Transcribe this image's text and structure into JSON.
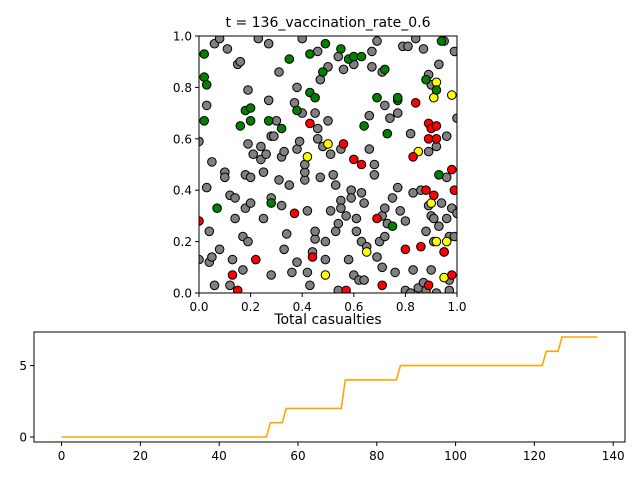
{
  "chart_data": [
    {
      "type": "scatter",
      "title": "t = 136_vaccination_rate_0.6",
      "xlabel": "",
      "ylabel": "",
      "xlim": [
        0,
        1
      ],
      "ylim": [
        0,
        1
      ],
      "xticks": [
        "0.0",
        "0.2",
        "0.4",
        "0.6",
        "0.8",
        "1.0"
      ],
      "yticks": [
        "0.0",
        "0.2",
        "0.4",
        "0.6",
        "0.8",
        "1.0"
      ],
      "grid": false,
      "colors": {
        "susceptible": "#808080",
        "vaccinated": "#008000",
        "infected": "#ff0000",
        "recovered": "#ffff00",
        "edge": "#000000"
      },
      "series": [
        {
          "name": "green",
          "color": "#008000",
          "points": [
            [
              0.02,
              0.93
            ],
            [
              0.02,
              0.84
            ],
            [
              0.03,
              0.81
            ],
            [
              0.02,
              0.67
            ],
            [
              0.07,
              0.33
            ],
            [
              0.16,
              0.65
            ],
            [
              0.18,
              0.71
            ],
            [
              0.2,
              0.67
            ],
            [
              0.2,
              0.72
            ],
            [
              0.27,
              0.67
            ],
            [
              0.28,
              0.35
            ],
            [
              0.32,
              0.64
            ],
            [
              0.35,
              0.91
            ],
            [
              0.38,
              0.71
            ],
            [
              0.43,
              0.93
            ],
            [
              0.43,
              0.78
            ],
            [
              0.45,
              0.76
            ],
            [
              0.48,
              0.86
            ],
            [
              0.49,
              0.97
            ],
            [
              0.55,
              0.95
            ],
            [
              0.58,
              0.91
            ],
            [
              0.6,
              0.92
            ],
            [
              0.63,
              0.92
            ],
            [
              0.64,
              0.65
            ],
            [
              0.69,
              0.76
            ],
            [
              0.72,
              0.87
            ],
            [
              0.73,
              0.62
            ],
            [
              0.75,
              0.26
            ],
            [
              0.77,
              0.75
            ],
            [
              0.88,
              0.83
            ],
            [
              0.92,
              0.79
            ],
            [
              0.93,
              0.46
            ],
            [
              0.94,
              0.98
            ],
            [
              0.77,
              0.76
            ]
          ]
        },
        {
          "name": "red",
          "color": "#ff0000",
          "points": [
            [
              0.0,
              0.28
            ],
            [
              0.13,
              0.07
            ],
            [
              0.15,
              0.01
            ],
            [
              0.22,
              0.13
            ],
            [
              0.37,
              0.31
            ],
            [
              0.43,
              0.66
            ],
            [
              0.44,
              0.14
            ],
            [
              0.56,
              0.58
            ],
            [
              0.57,
              0.01
            ],
            [
              0.6,
              0.52
            ],
            [
              0.63,
              0.5
            ],
            [
              0.69,
              0.29
            ],
            [
              0.71,
              0.03
            ],
            [
              0.8,
              0.17
            ],
            [
              0.83,
              0.53
            ],
            [
              0.84,
              0.74
            ],
            [
              0.86,
              0.18
            ],
            [
              0.88,
              0.4
            ],
            [
              0.89,
              0.66
            ],
            [
              0.89,
              0.6
            ],
            [
              0.9,
              0.64
            ],
            [
              0.91,
              0.38
            ],
            [
              0.92,
              0.6
            ],
            [
              0.95,
              0.16
            ],
            [
              0.98,
              0.48
            ],
            [
              0.98,
              0.07
            ],
            [
              0.99,
              0.4
            ],
            [
              0.89,
              0.03
            ],
            [
              0.92,
              0.65
            ]
          ]
        },
        {
          "name": "yellow",
          "color": "#ffff00",
          "points": [
            [
              0.42,
              0.53
            ],
            [
              0.5,
              0.58
            ],
            [
              0.49,
              0.07
            ],
            [
              0.65,
              0.16
            ],
            [
              0.85,
              0.55
            ],
            [
              0.9,
              0.35
            ],
            [
              0.91,
              0.76
            ],
            [
              0.92,
              0.82
            ],
            [
              0.92,
              0.2
            ],
            [
              0.95,
              0.06
            ],
            [
              0.96,
              0.2
            ],
            [
              0.98,
              0.77
            ]
          ]
        },
        {
          "name": "gray",
          "color": "#808080",
          "points": [
            [
              0.0,
              0.59
            ],
            [
              0.0,
              0.13
            ],
            [
              0.03,
              0.73
            ],
            [
              0.03,
              0.41
            ],
            [
              0.04,
              0.12
            ],
            [
              0.04,
              0.24
            ],
            [
              0.05,
              0.51
            ],
            [
              0.05,
              0.14
            ],
            [
              0.06,
              0.03
            ],
            [
              0.06,
              0.97
            ],
            [
              0.08,
              0.17
            ],
            [
              0.08,
              0.99
            ],
            [
              0.1,
              0.47
            ],
            [
              0.1,
              0.45
            ],
            [
              0.11,
              0.95
            ],
            [
              0.12,
              0.03
            ],
            [
              0.12,
              0.38
            ],
            [
              0.13,
              0.13
            ],
            [
              0.14,
              0.29
            ],
            [
              0.14,
              0.37
            ],
            [
              0.15,
              0.89
            ],
            [
              0.16,
              0.9
            ],
            [
              0.17,
              0.22
            ],
            [
              0.18,
              0.33
            ],
            [
              0.18,
              0.46
            ],
            [
              0.19,
              0.2
            ],
            [
              0.19,
              0.79
            ],
            [
              0.19,
              0.58
            ],
            [
              0.2,
              0.35
            ],
            [
              0.2,
              0.45
            ],
            [
              0.21,
              0.54
            ],
            [
              0.23,
              0.99
            ],
            [
              0.24,
              0.52
            ],
            [
              0.24,
              0.57
            ],
            [
              0.25,
              0.47
            ],
            [
              0.25,
              0.29
            ],
            [
              0.26,
              0.54
            ],
            [
              0.27,
              0.97
            ],
            [
              0.27,
              0.75
            ],
            [
              0.28,
              0.61
            ],
            [
              0.28,
              0.37
            ],
            [
              0.29,
              0.61
            ],
            [
              0.3,
              0.67
            ],
            [
              0.31,
              0.86
            ],
            [
              0.31,
              0.44
            ],
            [
              0.32,
              0.34
            ],
            [
              0.32,
              0.53
            ],
            [
              0.33,
              0.55
            ],
            [
              0.33,
              0.17
            ],
            [
              0.34,
              0.23
            ],
            [
              0.35,
              0.42
            ],
            [
              0.36,
              0.08
            ],
            [
              0.37,
              0.74
            ],
            [
              0.38,
              0.12
            ],
            [
              0.38,
              0.8
            ],
            [
              0.38,
              0.56
            ],
            [
              0.39,
              0.59
            ],
            [
              0.4,
              0.99
            ],
            [
              0.4,
              0.7
            ],
            [
              0.41,
              0.44
            ],
            [
              0.41,
              0.47
            ],
            [
              0.41,
              0.5
            ],
            [
              0.42,
              0.32
            ],
            [
              0.42,
              0.08
            ],
            [
              0.43,
              0.03
            ],
            [
              0.44,
              0.16
            ],
            [
              0.45,
              0.21
            ],
            [
              0.45,
              0.24
            ],
            [
              0.45,
              0.7
            ],
            [
              0.46,
              0.64
            ],
            [
              0.46,
              0.6
            ],
            [
              0.46,
              0.94
            ],
            [
              0.47,
              0.45
            ],
            [
              0.47,
              0.83
            ],
            [
              0.48,
              0.57
            ],
            [
              0.49,
              0.13
            ],
            [
              0.49,
              0.2
            ],
            [
              0.5,
              0.67
            ],
            [
              0.5,
              0.88
            ],
            [
              0.51,
              0.32
            ],
            [
              0.51,
              0.54
            ],
            [
              0.52,
              0.46
            ],
            [
              0.53,
              0.42
            ],
            [
              0.53,
              0.24
            ],
            [
              0.54,
              0.01
            ],
            [
              0.54,
              0.27
            ],
            [
              0.54,
              0.92
            ],
            [
              0.55,
              0.56
            ],
            [
              0.55,
              0.36
            ],
            [
              0.55,
              0.33
            ],
            [
              0.56,
              0.87
            ],
            [
              0.57,
              0.3
            ],
            [
              0.58,
              0.13
            ],
            [
              0.59,
              0.4
            ],
            [
              0.59,
              0.37
            ],
            [
              0.6,
              0.07
            ],
            [
              0.6,
              0.89
            ],
            [
              0.61,
              0.29
            ],
            [
              0.61,
              0.24
            ],
            [
              0.62,
              0.05
            ],
            [
              0.63,
              0.2
            ],
            [
              0.63,
              0.39
            ],
            [
              0.64,
              0.35
            ],
            [
              0.64,
              0.05
            ],
            [
              0.65,
              0.18
            ],
            [
              0.66,
              0.69
            ],
            [
              0.66,
              0.56
            ],
            [
              0.67,
              0.94
            ],
            [
              0.67,
              0.88
            ],
            [
              0.68,
              0.46
            ],
            [
              0.68,
              0.5
            ],
            [
              0.69,
              0.14
            ],
            [
              0.69,
              0.98
            ],
            [
              0.7,
              0.2
            ],
            [
              0.71,
              0.1
            ],
            [
              0.71,
              0.3
            ],
            [
              0.71,
              0.86
            ],
            [
              0.72,
              0.33
            ],
            [
              0.72,
              0.22
            ],
            [
              0.72,
              0.73
            ],
            [
              0.73,
              0.27
            ],
            [
              0.74,
              0.68
            ],
            [
              0.75,
              0.37
            ],
            [
              0.76,
              0.08
            ],
            [
              0.77,
              0.41
            ],
            [
              0.77,
              0.7
            ],
            [
              0.78,
              0.32
            ],
            [
              0.79,
              0.96
            ],
            [
              0.8,
              0.28
            ],
            [
              0.8,
              0.01
            ],
            [
              0.81,
              0.96
            ],
            [
              0.82,
              0.0
            ],
            [
              0.82,
              0.62
            ],
            [
              0.83,
              0.09
            ],
            [
              0.83,
              0.39
            ],
            [
              0.84,
              0.99
            ],
            [
              0.85,
              0.02
            ],
            [
              0.86,
              0.4
            ],
            [
              0.87,
              0.95
            ],
            [
              0.87,
              0.04
            ],
            [
              0.88,
              0.24
            ],
            [
              0.88,
              0.01
            ],
            [
              0.89,
              0.85
            ],
            [
              0.89,
              0.34
            ],
            [
              0.89,
              0.55
            ],
            [
              0.9,
              0.09
            ],
            [
              0.9,
              0.3
            ],
            [
              0.9,
              0.81
            ],
            [
              0.91,
              0.29
            ],
            [
              0.91,
              0.2
            ],
            [
              0.92,
              0.0
            ],
            [
              0.92,
              0.57
            ],
            [
              0.93,
              0.89
            ],
            [
              0.93,
              0.26
            ],
            [
              0.94,
              0.35
            ],
            [
              0.95,
              0.16
            ],
            [
              0.95,
              0.98
            ],
            [
              0.96,
              0.45
            ],
            [
              0.96,
              0.61
            ],
            [
              0.96,
              0.29
            ],
            [
              0.97,
              0.01
            ],
            [
              0.97,
              0.05
            ],
            [
              0.97,
              0.22
            ],
            [
              0.98,
              0.33
            ],
            [
              0.99,
              0.94
            ],
            [
              0.99,
              0.22
            ],
            [
              1.0,
              0.68
            ],
            [
              1.0,
              0.31
            ],
            [
              0.28,
              0.07
            ],
            [
              0.17,
              0.09
            ]
          ]
        }
      ]
    },
    {
      "type": "line",
      "title": "Total casualties",
      "xlabel": "",
      "ylabel": "",
      "xlim": [
        -7,
        143
      ],
      "ylim": [
        -0.35,
        7.35
      ],
      "xticks": [
        0,
        20,
        40,
        60,
        80,
        100,
        120,
        140
      ],
      "yticks": [
        0,
        5
      ],
      "color": "#ffa500",
      "x": [
        0,
        52,
        53,
        56,
        57,
        71,
        72,
        85,
        86,
        122,
        123,
        126,
        127,
        136
      ],
      "y": [
        0,
        0,
        1,
        1,
        2,
        2,
        4,
        4,
        5,
        5,
        6,
        6,
        7,
        7
      ]
    }
  ]
}
